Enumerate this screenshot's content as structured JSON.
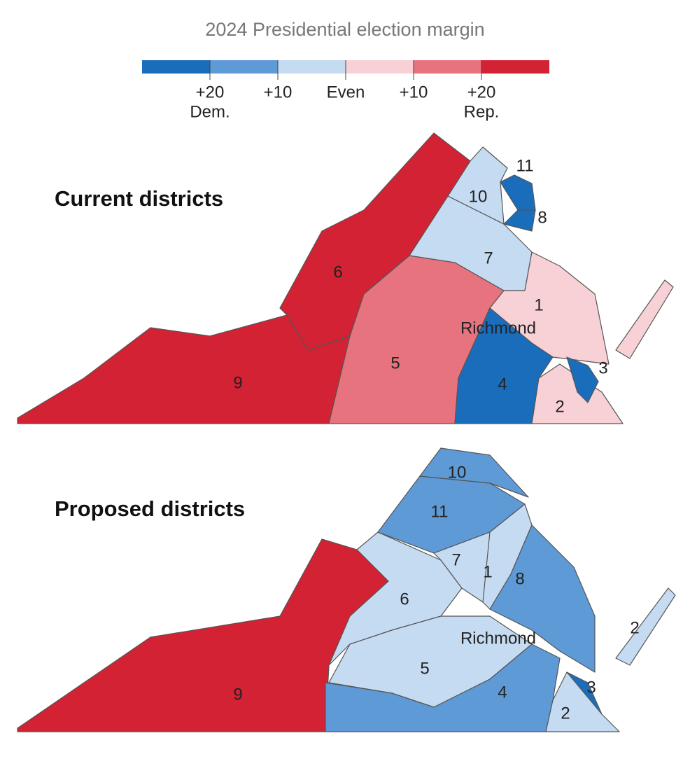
{
  "title": "2024 Presidential election margin",
  "legend": {
    "colors": [
      "#1a6dbb",
      "#5e9ad6",
      "#c5dbf1",
      "#f8d1d7",
      "#e7737e",
      "#d32234"
    ],
    "ticks": [
      "+20",
      "+10",
      "Even",
      "+10",
      "+20"
    ],
    "dem_note": "Dem.",
    "rep_note": "Rep."
  },
  "maps": [
    {
      "title": "Current districts",
      "city": "Richmond",
      "districts": [
        {
          "label": "9",
          "color": "#d32234"
        },
        {
          "label": "6",
          "color": "#d32234"
        },
        {
          "label": "5",
          "color": "#e7737e"
        },
        {
          "label": "7",
          "color": "#c5dbf1"
        },
        {
          "label": "10",
          "color": "#c5dbf1"
        },
        {
          "label": "11",
          "color": "#1a6dbb"
        },
        {
          "label": "8",
          "color": "#1a6dbb"
        },
        {
          "label": "1",
          "color": "#f8d1d7"
        },
        {
          "label": "4",
          "color": "#1a6dbb"
        },
        {
          "label": "2",
          "color": "#f8d1d7"
        },
        {
          "label": "3",
          "color": "#1a6dbb"
        }
      ]
    },
    {
      "title": "Proposed districts",
      "city": "Richmond",
      "districts": [
        {
          "label": "9",
          "color": "#d32234"
        },
        {
          "label": "6",
          "color": "#c5dbf1"
        },
        {
          "label": "11",
          "color": "#5e9ad6"
        },
        {
          "label": "10",
          "color": "#5e9ad6"
        },
        {
          "label": "7",
          "color": "#c5dbf1"
        },
        {
          "label": "1",
          "color": "#c5dbf1"
        },
        {
          "label": "8",
          "color": "#5e9ad6"
        },
        {
          "label": "5",
          "color": "#c5dbf1"
        },
        {
          "label": "4",
          "color": "#5e9ad6"
        },
        {
          "label": "3",
          "color": "#1a6dbb"
        },
        {
          "label": "2",
          "color": "#c5dbf1"
        }
      ]
    }
  ]
}
